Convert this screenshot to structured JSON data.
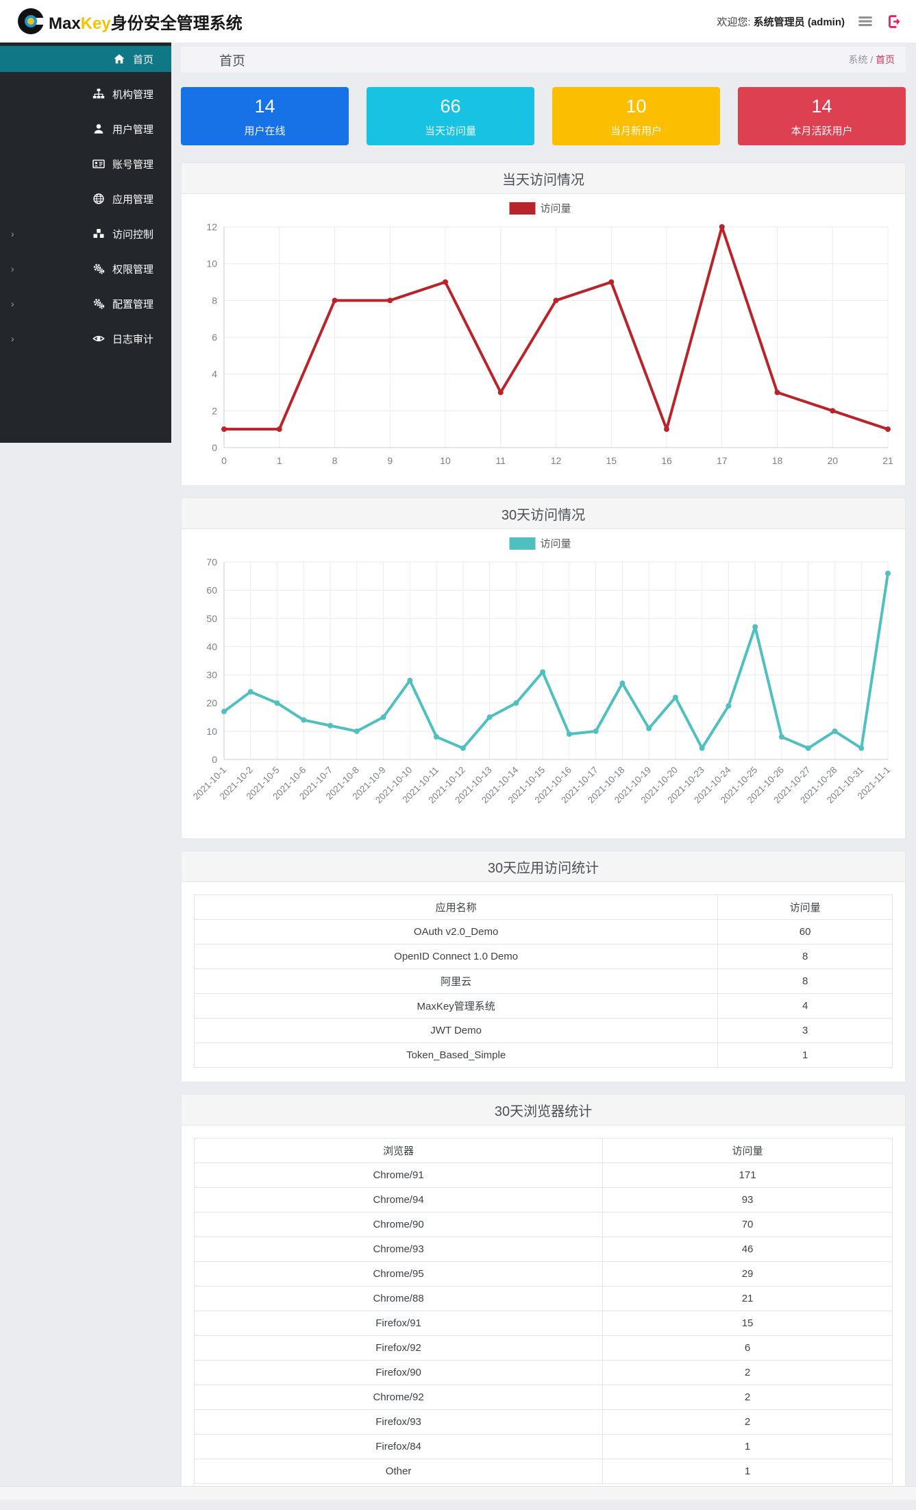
{
  "header": {
    "logo_max": "Max",
    "logo_key": "Key",
    "logo_suffix": "身份安全管理系统",
    "welcome_prefix": "欢迎您:",
    "welcome_user": "系统管理员 (admin)",
    "icons": {
      "menu_toggle": "hamburger-icon",
      "logout": "logout-icon"
    }
  },
  "sidebar": {
    "items": [
      {
        "key": "home",
        "label": "首页",
        "icon": "home-icon",
        "active": true,
        "expandable": false
      },
      {
        "key": "org",
        "label": "机构管理",
        "icon": "sitemap-icon",
        "active": false,
        "expandable": false
      },
      {
        "key": "user",
        "label": "用户管理",
        "icon": "user-icon",
        "active": false,
        "expandable": false
      },
      {
        "key": "account",
        "label": "账号管理",
        "icon": "idcard-icon",
        "active": false,
        "expandable": false
      },
      {
        "key": "app",
        "label": "应用管理",
        "icon": "globe-icon",
        "active": false,
        "expandable": false
      },
      {
        "key": "access-control",
        "label": "访问控制",
        "icon": "cubes-icon",
        "active": false,
        "expandable": true
      },
      {
        "key": "permission",
        "label": "权限管理",
        "icon": "gears-icon",
        "active": false,
        "expandable": true
      },
      {
        "key": "config",
        "label": "配置管理",
        "icon": "gears-icon",
        "active": false,
        "expandable": true
      },
      {
        "key": "audit",
        "label": "日志审计",
        "icon": "eye-icon",
        "active": false,
        "expandable": true
      }
    ]
  },
  "breadcrumb": {
    "title": "首页",
    "root": "系统",
    "sep": "/",
    "current": "首页"
  },
  "stat_cards": [
    {
      "value": "14",
      "label": "用户在线",
      "color": "#1672e6"
    },
    {
      "value": "66",
      "label": "当天访问量",
      "color": "#17c2e3"
    },
    {
      "value": "10",
      "label": "当月新用户",
      "color": "#fcbe00"
    },
    {
      "value": "14",
      "label": "本月活跃用户",
      "color": "#dc4051"
    }
  ],
  "chart_data": [
    {
      "type": "line",
      "title": "当天访问情况",
      "legend": "访问量",
      "color": "#b9242b",
      "categories": [
        "0",
        "1",
        "8",
        "9",
        "10",
        "11",
        "12",
        "15",
        "16",
        "17",
        "18",
        "20",
        "21"
      ],
      "values": [
        1,
        1,
        8,
        8,
        9,
        3,
        8,
        9,
        1,
        12,
        3,
        2,
        1
      ],
      "xlabel": "",
      "ylabel": "",
      "ylim": [
        0,
        12
      ],
      "yticks": [
        0,
        2,
        4,
        6,
        8,
        10,
        12
      ],
      "grid": true,
      "legend_position": "top-center",
      "rotate_labels": false
    },
    {
      "type": "line",
      "title": "30天访问情况",
      "legend": "访问量",
      "color": "#4fbfc0",
      "categories": [
        "2021-10-1",
        "2021-10-2",
        "2021-10-5",
        "2021-10-6",
        "2021-10-7",
        "2021-10-8",
        "2021-10-9",
        "2021-10-10",
        "2021-10-11",
        "2021-10-12",
        "2021-10-13",
        "2021-10-14",
        "2021-10-15",
        "2021-10-16",
        "2021-10-17",
        "2021-10-18",
        "2021-10-19",
        "2021-10-20",
        "2021-10-23",
        "2021-10-24",
        "2021-10-25",
        "2021-10-26",
        "2021-10-27",
        "2021-10-28",
        "2021-10-31",
        "2021-11-1"
      ],
      "values": [
        17,
        24,
        20,
        14,
        12,
        10,
        15,
        28,
        8,
        4,
        15,
        20,
        31,
        9,
        10,
        27,
        11,
        22,
        4,
        19,
        47,
        8,
        4,
        10,
        4,
        66
      ],
      "xlabel": "",
      "ylabel": "",
      "ylim": [
        0,
        70
      ],
      "yticks": [
        0,
        10,
        20,
        30,
        40,
        50,
        60,
        70
      ],
      "grid": true,
      "legend_position": "top-center",
      "rotate_labels": true
    }
  ],
  "tables": [
    {
      "title": "30天应用访问统计",
      "headers": [
        "应用名称",
        "访问量"
      ],
      "rows": [
        [
          "OAuth v2.0_Demo",
          "60"
        ],
        [
          "OpenID Connect 1.0 Demo",
          "8"
        ],
        [
          "阿里云",
          "8"
        ],
        [
          "MaxKey管理系统",
          "4"
        ],
        [
          "JWT Demo",
          "3"
        ],
        [
          "Token_Based_Simple",
          "1"
        ]
      ]
    },
    {
      "title": "30天浏览器统计",
      "headers": [
        "浏览器",
        "访问量"
      ],
      "rows": [
        [
          "Chrome/91",
          "171"
        ],
        [
          "Chrome/94",
          "93"
        ],
        [
          "Chrome/90",
          "70"
        ],
        [
          "Chrome/93",
          "46"
        ],
        [
          "Chrome/95",
          "29"
        ],
        [
          "Chrome/88",
          "21"
        ],
        [
          "Firefox/91",
          "15"
        ],
        [
          "Firefox/92",
          "6"
        ],
        [
          "Firefox/90",
          "2"
        ],
        [
          "Chrome/92",
          "2"
        ],
        [
          "Firefox/93",
          "2"
        ],
        [
          "Firefox/84",
          "1"
        ],
        [
          "Other",
          "1"
        ]
      ]
    }
  ]
}
